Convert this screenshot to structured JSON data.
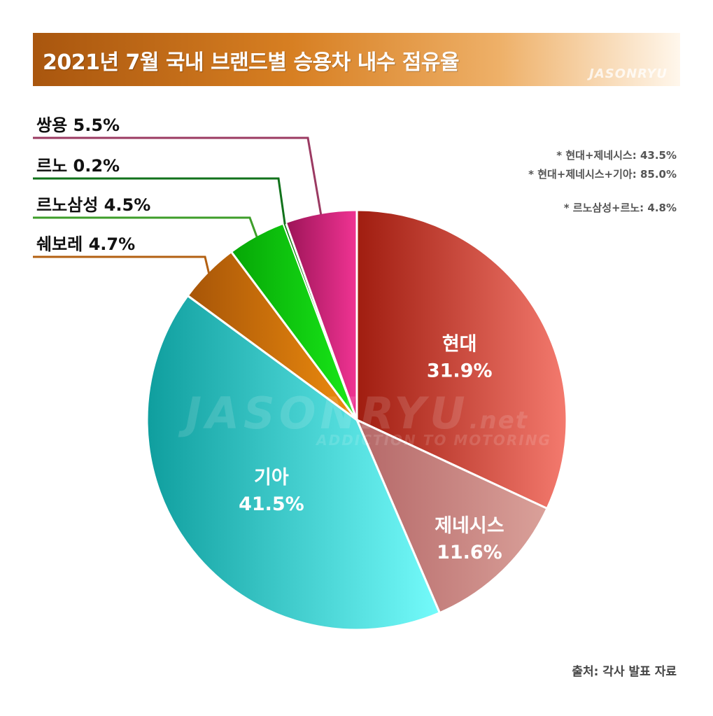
{
  "header": {
    "title": "2021년 7월 국내 브랜드별 승용차 내수 점유율",
    "watermark": "JASONRYU"
  },
  "chart_data": {
    "type": "pie",
    "start": "12 o'clock",
    "direction": "clockwise",
    "slices": [
      {
        "label": "현대",
        "value": 31.9,
        "display": "31.9%",
        "color_dark": "#a01d10",
        "color_light": "#f47a6e",
        "label_style": "inside"
      },
      {
        "label": "제네시스",
        "value": 11.6,
        "display": "11.6%",
        "color_dark": "#b56868",
        "color_light": "#daa19a",
        "label_style": "inside"
      },
      {
        "label": "기아",
        "value": 41.5,
        "display": "41.5%",
        "color_dark": "#0f9e9e",
        "color_light": "#74fbfb",
        "label_style": "inside"
      },
      {
        "label": "쉐보레",
        "value": 4.7,
        "display": "4.7%",
        "color_dark": "#a75508",
        "color_light": "#ee8c0e",
        "label_style": "callout"
      },
      {
        "label": "르노삼성",
        "value": 4.5,
        "display": "4.5%",
        "color_dark": "#06a606",
        "color_light": "#19ea19",
        "label_style": "callout"
      },
      {
        "label": "르노",
        "value": 0.2,
        "display": "0.2%",
        "color_dark": "#0a7a0a",
        "color_light": "#0a7a0a",
        "label_style": "callout"
      },
      {
        "label": "쌍용",
        "value": 5.5,
        "display": "5.5%",
        "color_dark": "#9c1457",
        "color_light": "#f03393",
        "label_style": "callout"
      }
    ],
    "callout_colors": {
      "쉐보레": "#b36012",
      "르노삼성": "#3e9e2a",
      "르노": "#11721b",
      "쌍용": "#9b3a62"
    },
    "watermark_text": "JASONRYU",
    "watermark_suffix": ".net",
    "watermark_tagline": "ADDICTION TO MOTORING"
  },
  "notes": {
    "line1": "* 현대+제네시스: 43.5%",
    "line2": "* 현대+제네시스+기아: 85.0%",
    "line3": "* 르노삼성+르노: 4.8%"
  },
  "source": "출처: 각사 발표 자료"
}
